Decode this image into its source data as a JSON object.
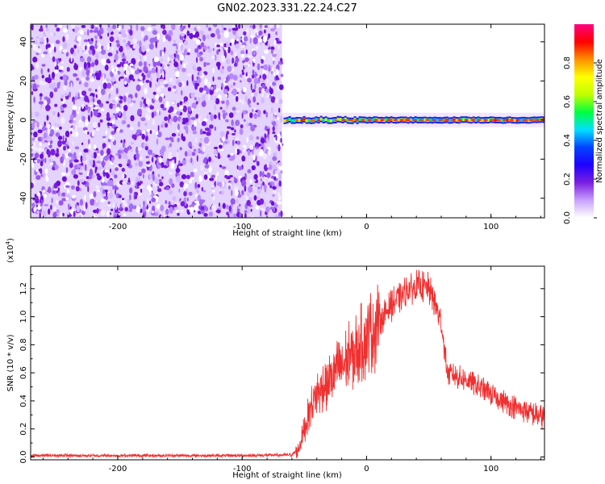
{
  "title": "GN02.2023.331.22.24.C27",
  "chart_data": [
    {
      "type": "heatmap",
      "xlabel": "Height of straight line (km)",
      "ylabel": "Frequency (Hz)",
      "xlim": [
        -270,
        143
      ],
      "ylim": [
        -50,
        49
      ],
      "xticks": [
        -200,
        -100,
        0,
        100
      ],
      "yticks": [
        -40,
        -20,
        0,
        20,
        40
      ],
      "noise_region_x": [
        -270,
        -68
      ],
      "signal_line_frequency": 0,
      "colorbar": {
        "label": "Normalized spectral amplitude",
        "range": [
          0.0,
          1.0
        ],
        "ticks": [
          "0.0",
          "0.2",
          "0.4",
          "0.6",
          "0.8"
        ],
        "tick_values": [
          0.0,
          0.2,
          0.4,
          0.6,
          0.8
        ],
        "colors": [
          "#ffffff",
          "#c8a0ff",
          "#7a1fe0",
          "#1f00ff",
          "#0044ff",
          "#00e0ff",
          "#00ff40",
          "#c0ff00",
          "#ffff00",
          "#ff9000",
          "#ff0000",
          "#ff0080"
        ]
      }
    },
    {
      "type": "line",
      "xlabel": "Height of straight line (km)",
      "ylabel": "SNR (10 * v/v)",
      "scale_label": "(x10",
      "scale_exponent": "4",
      "scale_suffix": ")",
      "xlim": [
        -270,
        143
      ],
      "ylim": [
        -0.02,
        1.36
      ],
      "xticks": [
        -200,
        -100,
        0,
        100
      ],
      "yticks": [
        "0.0",
        "0.2",
        "0.4",
        "0.6",
        "0.8",
        "1.0",
        "1.2"
      ],
      "ytick_values": [
        0.0,
        0.2,
        0.4,
        0.6,
        0.8,
        1.0,
        1.2
      ],
      "color": "#f03030",
      "series": [
        {
          "x": [
            -270,
            -200,
            -100,
            -60,
            -55,
            -50,
            -45,
            -40,
            -30,
            -20,
            -10,
            0,
            10,
            20,
            30,
            40,
            50,
            55,
            60,
            65,
            70,
            80,
            90,
            100,
            110,
            120,
            130,
            143
          ],
          "y": [
            0.01,
            0.01,
            0.01,
            0.015,
            0.05,
            0.2,
            0.35,
            0.45,
            0.55,
            0.65,
            0.75,
            0.85,
            0.97,
            1.08,
            1.17,
            1.22,
            1.2,
            1.1,
            0.95,
            0.6,
            0.58,
            0.55,
            0.5,
            0.45,
            0.4,
            0.35,
            0.32,
            0.28
          ]
        }
      ]
    }
  ]
}
